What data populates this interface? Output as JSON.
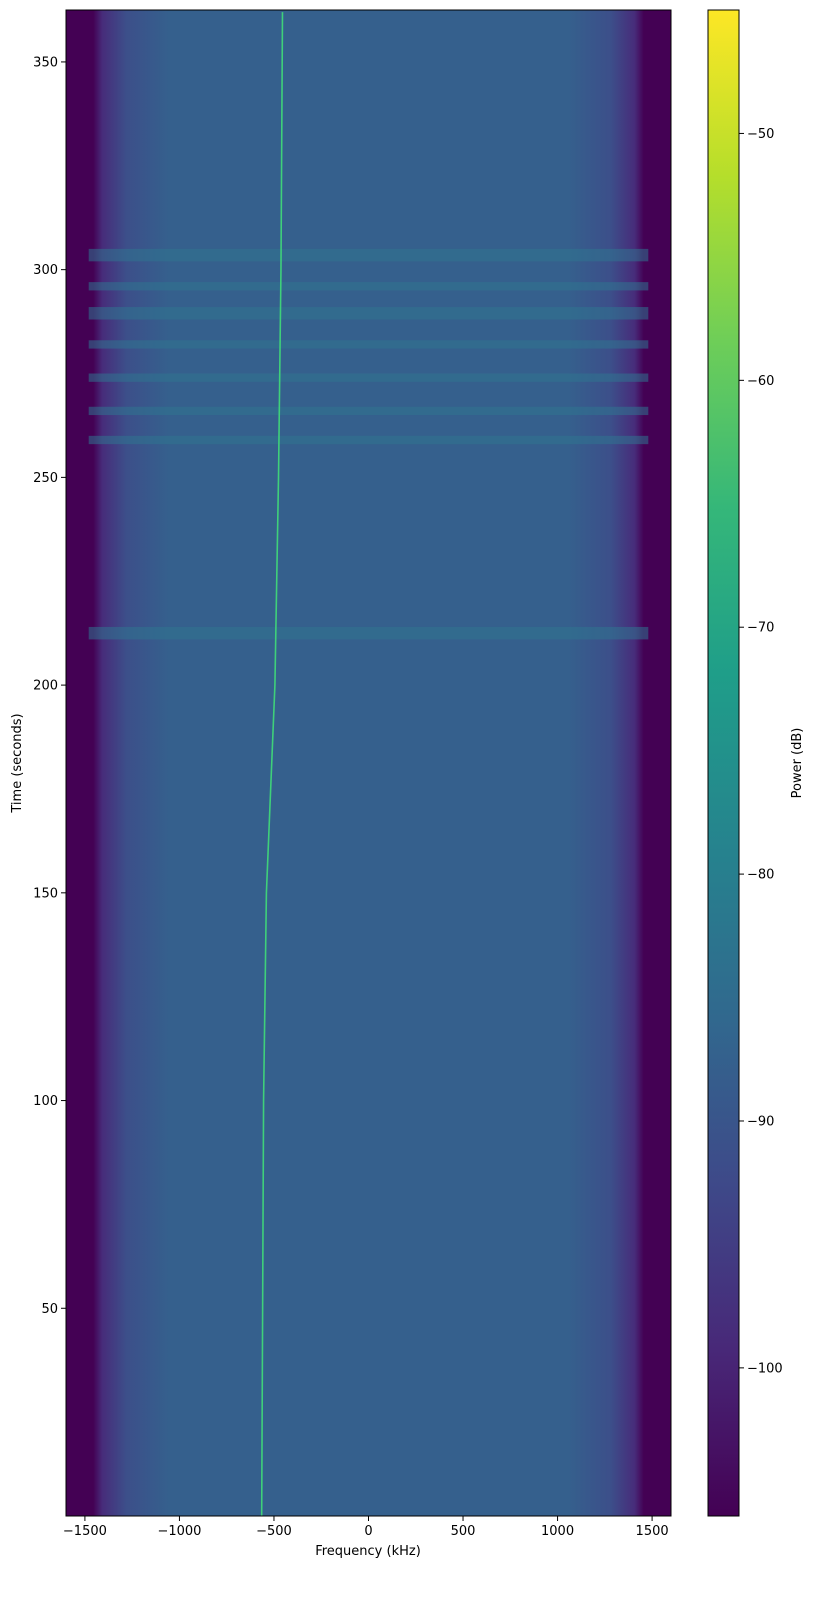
{
  "chart_data": {
    "type": "heatmap",
    "title": "",
    "xlabel": "Frequency (kHz)",
    "ylabel": "Time (seconds)",
    "xlim": [
      -1600,
      1600
    ],
    "ylim": [
      0,
      362.5
    ],
    "xticks": [
      -1500,
      -1000,
      -500,
      0,
      500,
      1000,
      1500
    ],
    "yticks": [
      50,
      100,
      150,
      200,
      250,
      300,
      350
    ],
    "colorbar": {
      "label": "Power (dB)",
      "range": [
        -106,
        -45
      ],
      "ticks": [
        -50,
        -60,
        -70,
        -80,
        -90,
        -100
      ],
      "colormap": "viridis"
    },
    "background_power_db": -86,
    "band_edge_power_db": -106,
    "passband_khz": [
      -1460,
      1460
    ],
    "signal_trace": {
      "points": [
        [
          -565,
          0
        ],
        [
          -560,
          50
        ],
        [
          -555,
          100
        ],
        [
          -540,
          150
        ],
        [
          -495,
          200
        ],
        [
          -476,
          250
        ],
        [
          -463,
          300
        ],
        [
          -455,
          362
        ]
      ],
      "power_db": -68
    },
    "interference_bands_seconds": [
      [
        211,
        214
      ],
      [
        258,
        260
      ],
      [
        265,
        267
      ],
      [
        273,
        275
      ],
      [
        281,
        283
      ],
      [
        288,
        291
      ],
      [
        295,
        297
      ],
      [
        302,
        305
      ]
    ],
    "grid": false,
    "colors": {
      "low": "#440154",
      "background": "#33638d",
      "signal": "#3fd07a",
      "high": "#fde725"
    }
  }
}
